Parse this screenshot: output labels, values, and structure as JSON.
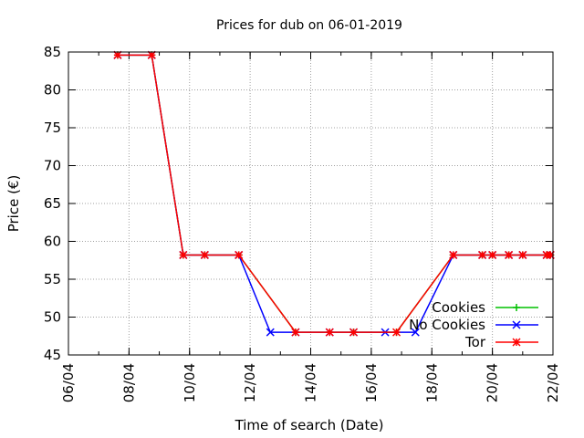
{
  "chart_data": {
    "type": "line",
    "title": "Prices for dub on 06-01-2019",
    "xlabel": "Time of search (Date)",
    "ylabel": "Price (€)",
    "xlim": [
      "06/04",
      "22/04"
    ],
    "ylim": [
      45,
      85
    ],
    "x_ticks": [
      "06/04",
      "08/04",
      "10/04",
      "12/04",
      "14/04",
      "16/04",
      "18/04",
      "20/04",
      "22/04"
    ],
    "y_ticks": [
      45,
      50,
      55,
      60,
      65,
      70,
      75,
      80,
      85
    ],
    "grid": true,
    "legend_position": "bottom-right",
    "series": [
      {
        "name": "Cookies",
        "color": "#00c000",
        "marker": "plus",
        "points": [
          [
            "07/04 15:00",
            84.6
          ],
          [
            "08/04 18:00",
            84.6
          ],
          [
            "09/04 19:00",
            58.2
          ],
          [
            "10/04 12:00",
            58.2
          ],
          [
            "11/04 15:00",
            58.2
          ],
          [
            "13/04 12:00",
            48.0
          ],
          [
            "14/04 15:00",
            48.0
          ],
          [
            "15/04 10:00",
            48.0
          ],
          [
            "16/04 20:00",
            48.0
          ],
          [
            "18/04 17:00",
            58.2
          ],
          [
            "19/04 16:00",
            58.2
          ],
          [
            "20/04 00:00",
            58.2
          ],
          [
            "20/04 13:00",
            58.2
          ],
          [
            "21/04 00:00",
            58.2
          ],
          [
            "21/04 19:00",
            58.2
          ],
          [
            "21/04 22:00",
            58.2
          ]
        ]
      },
      {
        "name": "No Cookies",
        "color": "#0000ff",
        "marker": "cross",
        "points": [
          [
            "07/04 15:00",
            84.6
          ],
          [
            "08/04 18:00",
            84.6
          ],
          [
            "09/04 19:00",
            58.2
          ],
          [
            "10/04 12:00",
            58.2
          ],
          [
            "11/04 15:00",
            58.2
          ],
          [
            "12/04 16:00",
            48.0
          ],
          [
            "13/04 12:00",
            48.0
          ],
          [
            "14/04 15:00",
            48.0
          ],
          [
            "15/04 10:00",
            48.0
          ],
          [
            "16/04 11:00",
            48.0
          ],
          [
            "17/04 11:00",
            48.0
          ],
          [
            "18/04 17:00",
            58.2
          ],
          [
            "19/04 16:00",
            58.2
          ],
          [
            "20/04 00:00",
            58.2
          ],
          [
            "20/04 13:00",
            58.2
          ],
          [
            "21/04 00:00",
            58.2
          ],
          [
            "21/04 19:00",
            58.2
          ],
          [
            "21/04 22:00",
            58.2
          ]
        ]
      },
      {
        "name": "Tor",
        "color": "#ff0000",
        "marker": "star",
        "points": [
          [
            "07/04 15:00",
            84.6
          ],
          [
            "08/04 18:00",
            84.6
          ],
          [
            "09/04 19:00",
            58.2
          ],
          [
            "10/04 12:00",
            58.2
          ],
          [
            "11/04 15:00",
            58.2
          ],
          [
            "13/04 12:00",
            48.0
          ],
          [
            "14/04 15:00",
            48.0
          ],
          [
            "15/04 10:00",
            48.0
          ],
          [
            "16/04 20:00",
            48.0
          ],
          [
            "18/04 17:00",
            58.2
          ],
          [
            "19/04 16:00",
            58.2
          ],
          [
            "20/04 00:00",
            58.2
          ],
          [
            "20/04 13:00",
            58.2
          ],
          [
            "21/04 00:00",
            58.2
          ],
          [
            "21/04 19:00",
            58.2
          ],
          [
            "21/04 22:00",
            58.2
          ]
        ]
      }
    ]
  }
}
